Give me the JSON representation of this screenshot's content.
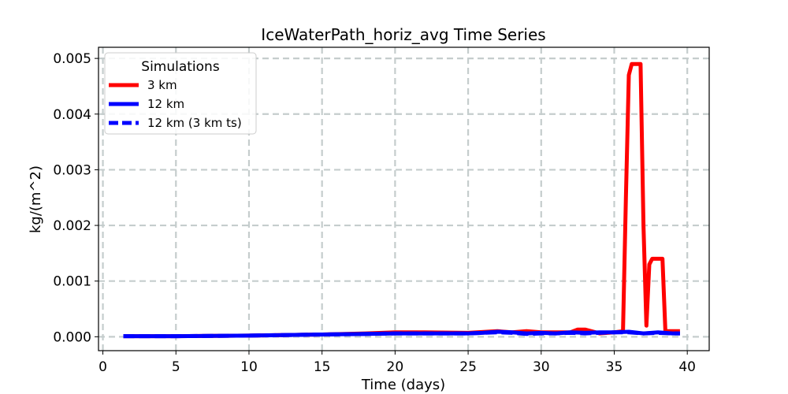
{
  "chart_data": {
    "type": "line",
    "title": "IceWaterPath_horiz_avg Time Series",
    "xlabel": "Time (days)",
    "ylabel": "kg/(m^2)",
    "xlim": [
      -0.3,
      41.5
    ],
    "ylim": [
      -0.00025,
      0.0052
    ],
    "xticks": [
      0,
      5,
      10,
      15,
      20,
      25,
      30,
      35,
      40
    ],
    "xtick_labels": [
      "0",
      "5",
      "10",
      "15",
      "20",
      "25",
      "30",
      "35",
      "40"
    ],
    "yticks": [
      0,
      0.001,
      0.002,
      0.003,
      0.004,
      0.005
    ],
    "ytick_labels": [
      "0.000",
      "0.001",
      "0.002",
      "0.003",
      "0.004",
      "0.005"
    ],
    "grid": true,
    "legend": {
      "title": "Simulations",
      "placement": "top-left"
    },
    "series": [
      {
        "name": "3 km",
        "color": "#ff0000",
        "style": "solid",
        "x": [
          1.4,
          5,
          10,
          15,
          18,
          20,
          22,
          25,
          27,
          28,
          29,
          30,
          31,
          32,
          32.5,
          33,
          34,
          35,
          35.6,
          35.8,
          36.0,
          36.2,
          36.4,
          36.8,
          37.0,
          37.2,
          37.4,
          37.6,
          38.0,
          38.3,
          38.5,
          39,
          39.5
        ],
        "values": [
          1e-05,
          1e-05,
          2e-05,
          4e-05,
          6e-05,
          8e-05,
          8e-05,
          7e-05,
          0.0001,
          8e-05,
          0.0001,
          8e-05,
          8e-05,
          8e-05,
          0.00013,
          0.00013,
          6e-05,
          8e-05,
          0.0001,
          0.0025,
          0.0047,
          0.0049,
          0.0049,
          0.0049,
          0.002,
          0.0002,
          0.0013,
          0.0014,
          0.0014,
          0.0014,
          0.0001,
          0.0001,
          0.0001
        ]
      },
      {
        "name": "12 km",
        "color": "#0000ff",
        "style": "solid",
        "x": [
          1.4,
          5,
          10,
          15,
          18,
          20,
          22,
          25,
          26,
          27,
          28,
          29,
          30,
          31,
          32,
          33,
          34,
          35,
          36,
          37,
          38,
          39,
          39.5
        ],
        "values": [
          1e-05,
          1e-05,
          2e-05,
          4e-05,
          5e-05,
          6e-05,
          6e-05,
          6e-05,
          7e-05,
          9e-05,
          8e-05,
          6e-05,
          7e-05,
          6e-05,
          8e-05,
          7e-05,
          8e-05,
          8e-05,
          9e-05,
          6e-05,
          8e-05,
          6e-05,
          6e-05
        ]
      },
      {
        "name": "12 km (3 km ts)",
        "color": "#0000ff",
        "style": "dashed",
        "x": [
          1.4,
          5,
          10,
          15,
          18,
          20,
          22,
          25,
          26,
          27,
          28,
          29,
          30,
          31,
          32,
          33,
          34,
          35,
          36,
          37,
          38,
          39,
          39.5
        ],
        "values": [
          1e-05,
          1e-05,
          2e-05,
          4e-05,
          5e-05,
          6e-05,
          6e-05,
          6e-05,
          7e-05,
          8e-05,
          7e-05,
          5e-05,
          6e-05,
          6e-05,
          7e-05,
          6e-05,
          7e-05,
          8e-05,
          8e-05,
          6e-05,
          7e-05,
          6e-05,
          6e-05
        ]
      }
    ]
  }
}
